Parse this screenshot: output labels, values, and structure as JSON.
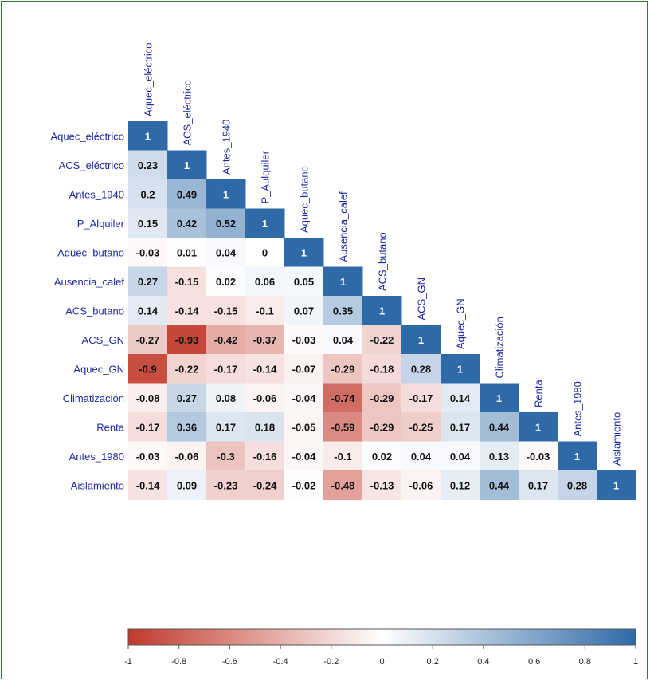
{
  "chart_data": {
    "type": "heatmap",
    "variables": [
      "Aquec_eléctrico",
      "ACS_eléctrico",
      "Antes_1940",
      "P_Aulquiler",
      "Aquec_butano",
      "Ausencia_calef",
      "ACS_butano",
      "ACS_GN",
      "Aquec_GN",
      "Climatización",
      "Renta",
      "Antes_1980",
      "Aislamiento"
    ],
    "row_labels": [
      "Aquec_eléctrico",
      "ACS_eléctrico",
      "Antes_1940",
      "P_Alquiler",
      "Aquec_butano",
      "Ausencia_calef",
      "ACS_butano",
      "ACS_GN",
      "Aquec_GN",
      "Climatización",
      "Renta",
      "Antes_1980",
      "Aislamiento"
    ],
    "col_labels": [
      "Aquec_eléctrico",
      "ACS_eléctrico",
      "Antes_1940",
      "P_Aulquiler",
      "Aquec_butano",
      "Ausencia_calef",
      "ACS_butano",
      "ACS_GN",
      "Aquec_GN",
      "Climatización",
      "Renta",
      "Antes_1980",
      "Aislamiento"
    ],
    "matrix": [
      [
        "1"
      ],
      [
        "0.23",
        "1"
      ],
      [
        "0.2",
        "0.49",
        "1"
      ],
      [
        "0.15",
        "0.42",
        "0.52",
        "1"
      ],
      [
        "-0.03",
        "0.01",
        "0.04",
        "0",
        "1"
      ],
      [
        "0.27",
        "-0.15",
        "0.02",
        "0.06",
        "0.05",
        "1"
      ],
      [
        "0.14",
        "-0.14",
        "-0.15",
        "-0.1",
        "0.07",
        "0.35",
        "1"
      ],
      [
        "-0.27",
        "-0.93",
        "-0.42",
        "-0.37",
        "-0.03",
        "0.04",
        "-0.22",
        "1"
      ],
      [
        "-0.9",
        "-0.22",
        "-0.17",
        "-0.14",
        "-0.07",
        "-0.29",
        "-0.18",
        "0.28",
        "1"
      ],
      [
        "-0.08",
        "0.27",
        "0.08",
        "-0.06",
        "-0.04",
        "-0.74",
        "-0.29",
        "-0.17",
        "0.14",
        "1"
      ],
      [
        "-0.17",
        "0.36",
        "0.17",
        "0.18",
        "-0.05",
        "-0.59",
        "-0.29",
        "-0.25",
        "0.17",
        "0.44",
        "1"
      ],
      [
        "-0.03",
        "-0.06",
        "-0.3",
        "-0.16",
        "-0.04",
        "-0.1",
        "0.02",
        "0.04",
        "0.04",
        "0.13",
        "-0.03",
        "1"
      ],
      [
        "-0.14",
        "0.09",
        "-0.23",
        "-0.24",
        "-0.02",
        "-0.48",
        "-0.13",
        "-0.06",
        "0.12",
        "0.44",
        "0.17",
        "0.28",
        "1"
      ]
    ],
    "color_scale": {
      "range": [
        -1,
        1
      ],
      "low_color": "#c0392b",
      "mid_color": "#ffffff",
      "high_color": "#2f6aa8",
      "ticks": [
        "-1",
        "-0.8",
        "-0.6",
        "-0.4",
        "-0.2",
        "0",
        "0.2",
        "0.4",
        "0.6",
        "0.8",
        "1"
      ]
    },
    "colors": {
      "label_text": "#1f2a9e",
      "frame_border": "#2e7d32"
    },
    "legend_position": "bottom"
  }
}
